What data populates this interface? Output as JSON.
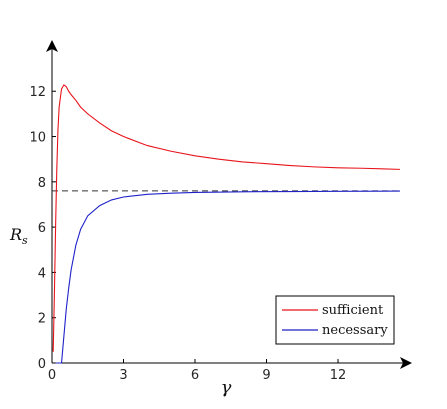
{
  "chart_data": {
    "type": "line",
    "xlabel": "γ",
    "ylabel_main": "R",
    "ylabel_sub": "s",
    "xlim": [
      0,
      14.6
    ],
    "ylim": [
      0,
      13.6
    ],
    "x_ticks": [
      0,
      3,
      6,
      9,
      12
    ],
    "y_ticks": [
      0,
      2,
      4,
      6,
      8,
      10,
      12
    ],
    "grid": false,
    "legend_position": "bottom-right",
    "reference_line": {
      "y": 7.6,
      "style": "dashed",
      "color": "#333333"
    },
    "series": [
      {
        "name": "sufficient",
        "color": "#e8141c",
        "x": [
          0.05,
          0.1,
          0.15,
          0.2,
          0.25,
          0.3,
          0.4,
          0.5,
          0.6,
          0.7,
          0.8,
          1.0,
          1.2,
          1.5,
          2.0,
          2.5,
          3.0,
          4.0,
          5.0,
          6.0,
          7.0,
          8.0,
          9.0,
          10.0,
          11.0,
          12.0,
          13.0,
          14.6
        ],
        "y": [
          0.5,
          3.0,
          6.0,
          8.5,
          10.3,
          11.3,
          12.1,
          12.28,
          12.2,
          12.0,
          11.85,
          11.6,
          11.3,
          11.0,
          10.6,
          10.25,
          10.0,
          9.6,
          9.35,
          9.15,
          9.0,
          8.88,
          8.8,
          8.72,
          8.66,
          8.62,
          8.6,
          8.55
        ]
      },
      {
        "name": "necessary",
        "color": "#1e22c8",
        "x": [
          0.4,
          0.5,
          0.6,
          0.7,
          0.8,
          1.0,
          1.2,
          1.5,
          2.0,
          2.5,
          3.0,
          4.0,
          5.0,
          6.0,
          8.0,
          10.0,
          12.0,
          14.6
        ],
        "y": [
          0.0,
          1.2,
          2.4,
          3.3,
          4.1,
          5.2,
          5.9,
          6.5,
          6.95,
          7.2,
          7.33,
          7.45,
          7.5,
          7.53,
          7.56,
          7.57,
          7.58,
          7.59
        ]
      }
    ]
  },
  "colors": {
    "axis": "#000000",
    "dashed": "#333333"
  }
}
